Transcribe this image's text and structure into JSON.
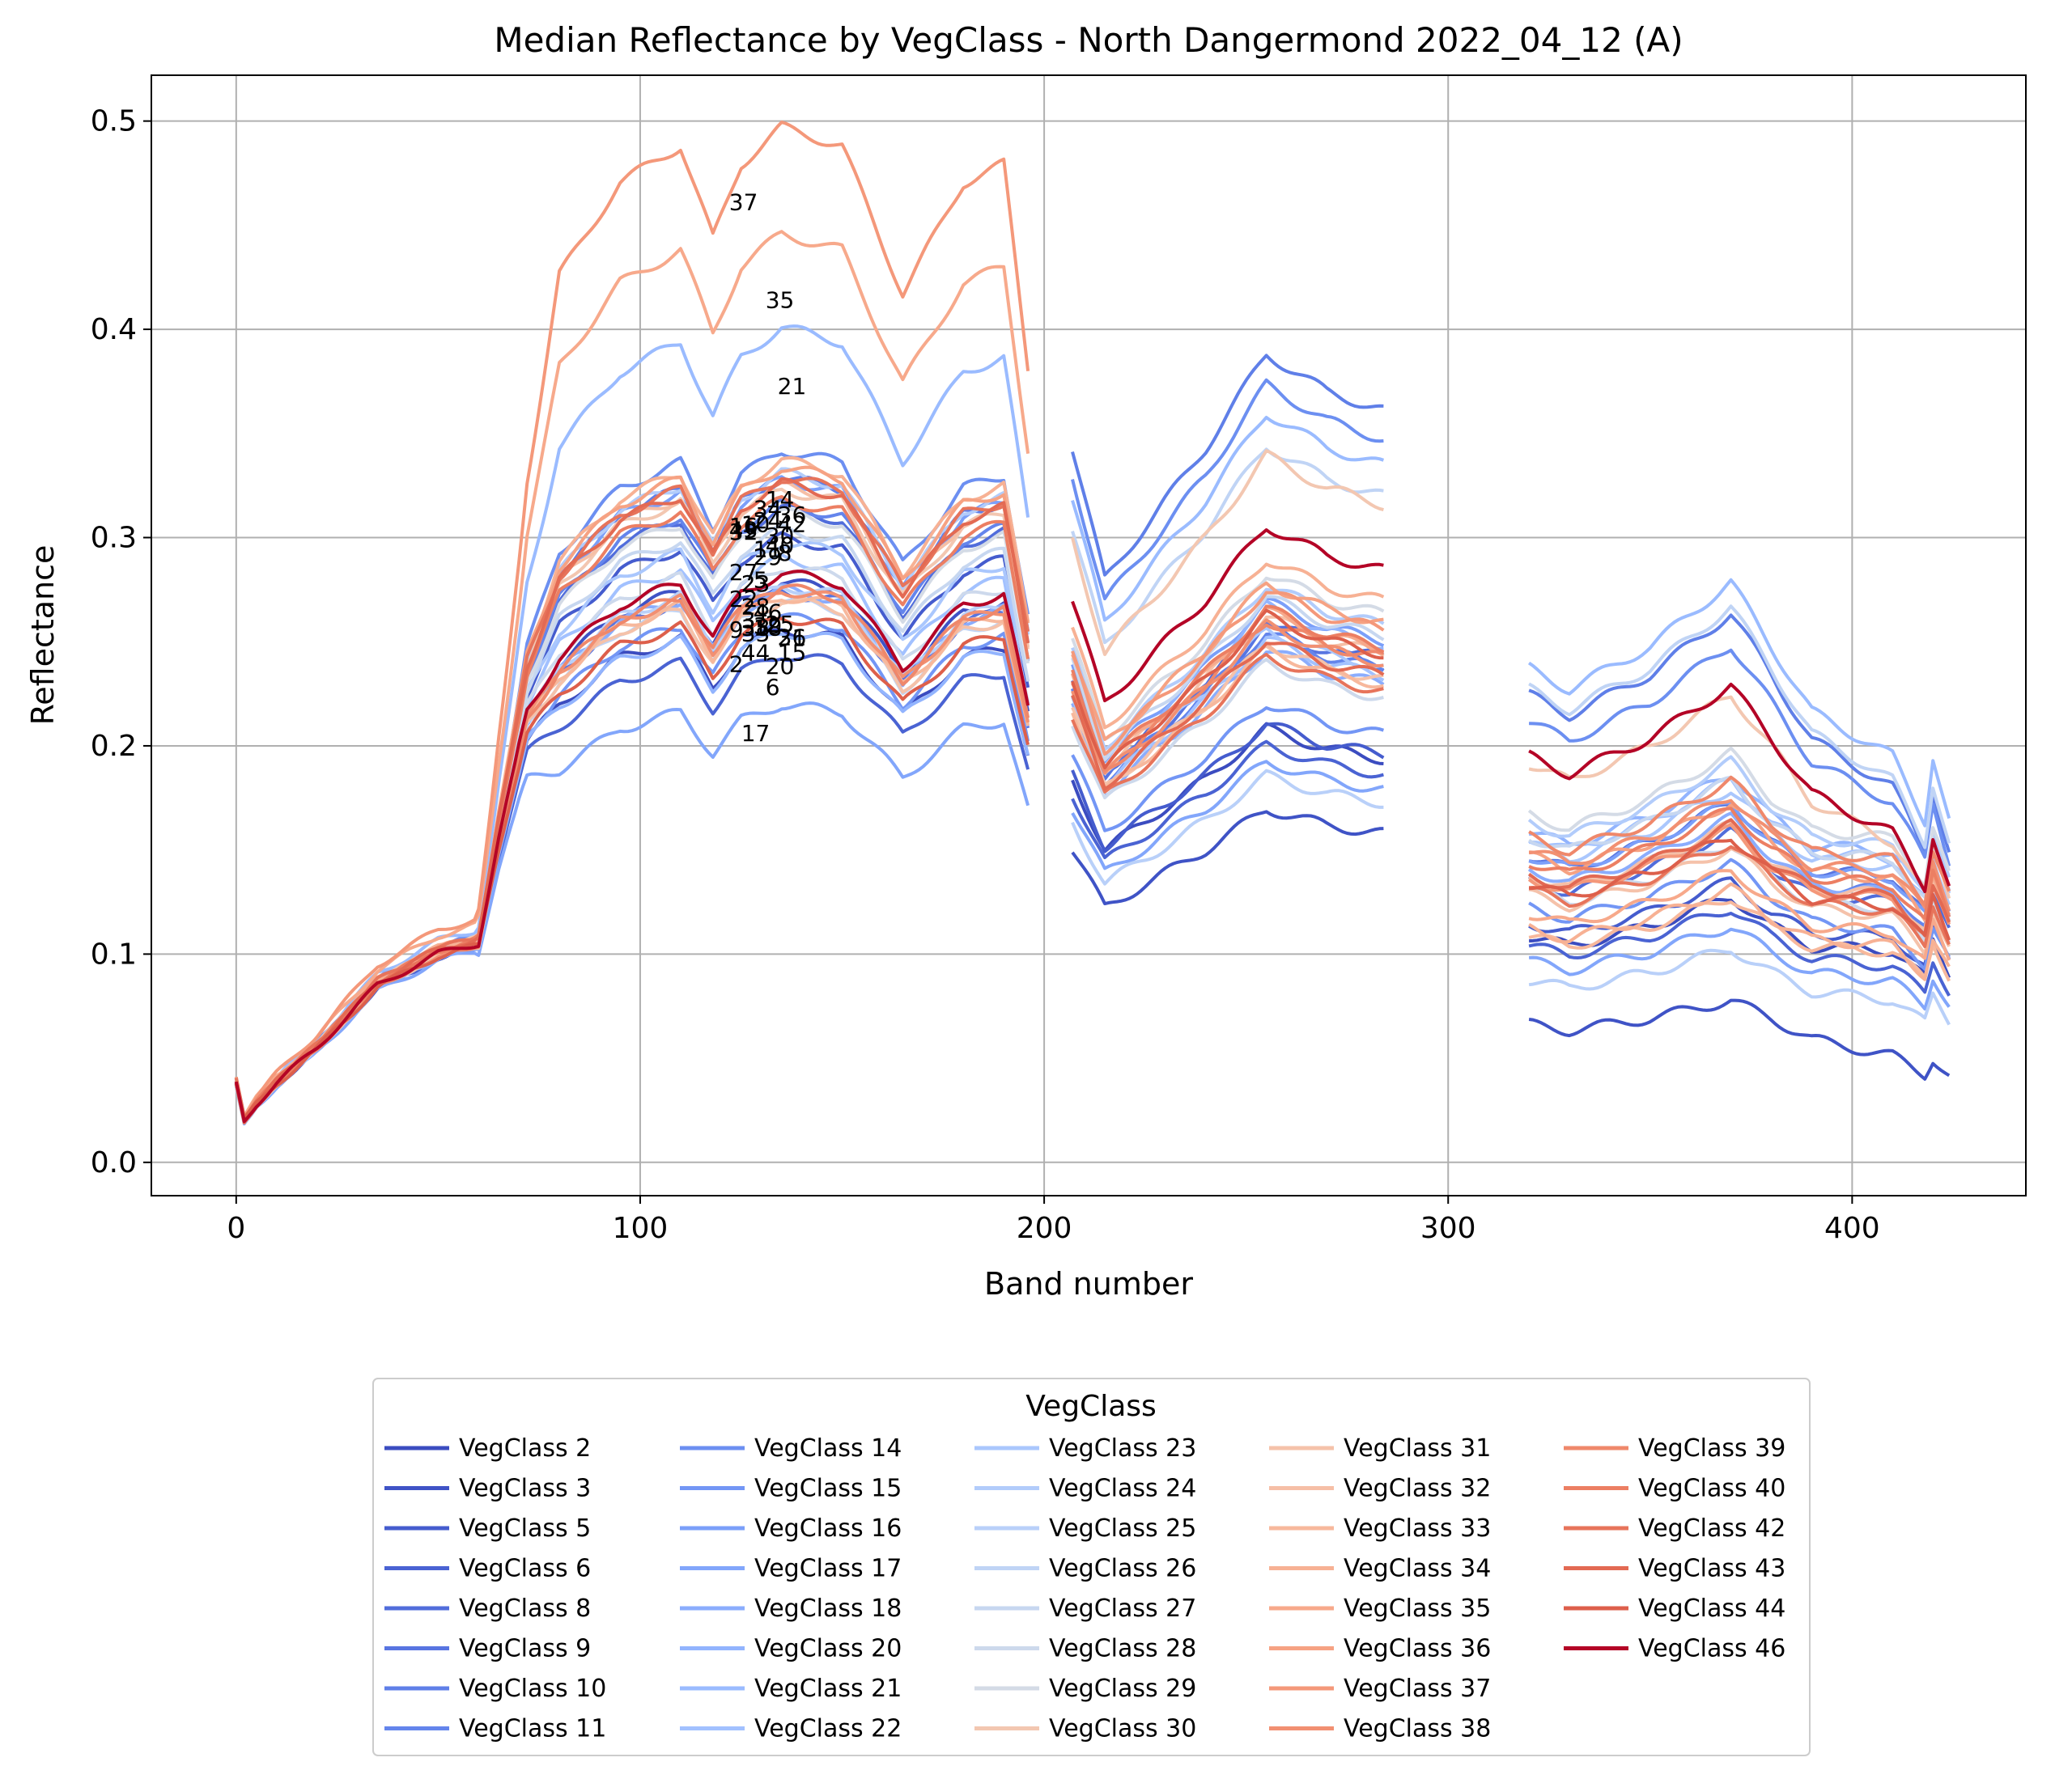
{
  "chart_data": {
    "type": "line",
    "title": "Median Reflectance by VegClass - North Dangermond 2022_04_12 (A)",
    "xlabel": "Band number",
    "ylabel": "Reflectance",
    "xlim": [
      -21,
      443
    ],
    "ylim": [
      -0.016,
      0.522
    ],
    "xticks": [
      0,
      100,
      200,
      300,
      400
    ],
    "xtick_labels": [
      "0",
      "100",
      "200",
      "300",
      "400"
    ],
    "yticks": [
      0.0,
      0.1,
      0.2,
      0.3,
      0.4,
      0.5
    ],
    "ytick_labels": [
      "0.0",
      "0.1",
      "0.2",
      "0.3",
      "0.4",
      "0.5"
    ],
    "grid": true,
    "legend_title": "VegClass",
    "legend_position": "below plot",
    "legend_columns": 5,
    "colormap": "coolwarm",
    "gap_bands": [
      [
        196,
        207
      ],
      [
        284,
        320
      ]
    ],
    "shape_x": [
      0,
      2,
      5,
      10,
      20,
      35,
      50,
      60,
      65,
      72,
      80,
      95,
      110,
      118,
      125,
      135,
      150,
      165,
      180,
      190,
      196,
      207,
      215,
      240,
      255,
      270,
      284,
      320,
      330,
      350,
      370,
      390,
      410,
      418,
      420,
      424
    ],
    "shape_y": [
      0.038,
      0.02,
      0.028,
      0.038,
      0.055,
      0.085,
      0.1,
      0.105,
      0.155,
      0.215,
      0.24,
      0.265,
      0.275,
      0.25,
      0.27,
      0.28,
      0.275,
      0.235,
      0.265,
      0.27,
      0.215,
      0.19,
      0.155,
      0.19,
      0.215,
      0.205,
      0.2,
      0.115,
      0.11,
      0.12,
      0.135,
      0.105,
      0.095,
      0.08,
      0.095,
      0.08
    ],
    "series": [
      {
        "name": "VegClass 2",
        "color": "#3b4cc0",
        "label": "2",
        "peak": 0.256,
        "swir1": 0.184,
        "swir2": 0.118,
        "late": 0.113
      },
      {
        "name": "VegClass 3",
        "color": "#3f53c6",
        "label": "3",
        "peak": 0.279,
        "swir1": 0.15,
        "swir2": 0.072,
        "late": 0.052
      },
      {
        "name": "VegClass 5",
        "color": "#455cce",
        "label": "5",
        "peak": 0.3,
        "swir1": 0.186,
        "swir2": 0.125,
        "late": 0.12
      },
      {
        "name": "VegClass 6",
        "color": "#4a63d3",
        "label": "6",
        "peak": 0.244,
        "swir1": 0.177,
        "swir2": 0.113,
        "late": 0.103
      },
      {
        "name": "VegClass 8",
        "color": "#516ddb",
        "label": "8",
        "peak": 0.314,
        "swir1": 0.23,
        "swir2": 0.147,
        "late": 0.138
      },
      {
        "name": "VegClass 9",
        "color": "#5875e1",
        "label": "9",
        "peak": 0.274,
        "swir1": 0.227,
        "swir2": 0.16,
        "late": 0.152
      },
      {
        "name": "VegClass 10",
        "color": "#5f7fe8",
        "label": "10",
        "peak": 0.329,
        "swir1": 0.343,
        "swir2": 0.244,
        "late": 0.187
      },
      {
        "name": "VegClass 11",
        "color": "#6485ec",
        "label": "11",
        "peak": 0.316,
        "swir1": 0.225,
        "swir2": 0.15,
        "late": 0.145
      },
      {
        "name": "VegClass 14",
        "color": "#6c8ff1",
        "label": "14",
        "peak": 0.342,
        "swir1": 0.33,
        "swir2": 0.23,
        "late": 0.181
      },
      {
        "name": "VegClass 15",
        "color": "#7396f5",
        "label": "15",
        "peak": 0.262,
        "swir1": 0.195,
        "swir2": 0.133,
        "late": 0.121
      },
      {
        "name": "VegClass 16",
        "color": "#7b9ff9",
        "label": "16",
        "peak": 0.328,
        "swir1": 0.238,
        "swir2": 0.16,
        "late": 0.151
      },
      {
        "name": "VegClass 17",
        "color": "#82a6fb",
        "label": "17",
        "peak": 0.22,
        "swir1": 0.17,
        "swir2": 0.105,
        "late": 0.095
      },
      {
        "name": "VegClass 18",
        "color": "#8badfd",
        "label": "18",
        "peak": 0.275,
        "swir1": 0.218,
        "swir2": 0.153,
        "late": 0.142
      },
      {
        "name": "VegClass 20",
        "color": "#92b4fe",
        "label": "20",
        "peak": 0.255,
        "swir1": 0.236,
        "swir2": 0.173,
        "late": 0.166
      },
      {
        "name": "VegClass 21",
        "color": "#9abbff",
        "label": "21",
        "peak": 0.401,
        "swir1": 0.318,
        "swir2": 0.258,
        "late": 0.205
      },
      {
        "name": "VegClass 22",
        "color": "#a2c1ff",
        "label": "22",
        "peak": 0.29,
        "swir1": 0.222,
        "swir2": 0.17,
        "late": 0.161
      },
      {
        "name": "VegClass 23",
        "color": "#aac7fd",
        "label": "23",
        "peak": 0.298,
        "swir1": 0.226,
        "swir2": 0.166,
        "late": 0.157
      },
      {
        "name": "VegClass 24",
        "color": "#b2ccfb",
        "label": "24",
        "peak": 0.331,
        "swir1": 0.245,
        "swir2": 0.178,
        "late": 0.168
      },
      {
        "name": "VegClass 25",
        "color": "#b9d0f9",
        "label": "25",
        "peak": 0.277,
        "swir1": 0.164,
        "swir2": 0.095,
        "late": 0.085
      },
      {
        "name": "VegClass 26",
        "color": "#c0d4f5",
        "label": "26",
        "peak": 0.27,
        "swir1": 0.304,
        "swir2": 0.247,
        "late": 0.191
      },
      {
        "name": "VegClass 27",
        "color": "#c7d7f0",
        "label": "27",
        "peak": 0.304,
        "swir1": 0.24,
        "swir2": 0.17,
        "late": 0.161
      },
      {
        "name": "VegClass 28",
        "color": "#cdd9ec",
        "label": "28",
        "peak": 0.286,
        "swir1": 0.212,
        "swir2": 0.142,
        "late": 0.135
      },
      {
        "name": "VegClass 29",
        "color": "#d4dbe6",
        "label": "29",
        "peak": 0.312,
        "swir1": 0.25,
        "swir2": 0.182,
        "late": 0.172
      },
      {
        "name": "VegClass 30",
        "color": "#f3c7b1",
        "label": "30",
        "peak": 0.323,
        "swir1": 0.3,
        "swir2": 0.208,
        "late": 0.16
      },
      {
        "name": "VegClass 31",
        "color": "#f5c2aa",
        "label": "31",
        "peak": 0.27,
        "swir1": 0.22,
        "swir2": 0.14,
        "late": 0.13
      },
      {
        "name": "VegClass 32",
        "color": "#f6bfa6",
        "label": "32",
        "peak": 0.325,
        "swir1": 0.232,
        "swir2": 0.15,
        "late": 0.142
      },
      {
        "name": "VegClass 33",
        "color": "#f7b89c",
        "label": "33",
        "peak": 0.272,
        "swir1": 0.218,
        "swir2": 0.118,
        "late": 0.112
      },
      {
        "name": "VegClass 34",
        "color": "#f7b194",
        "label": "34",
        "peak": 0.337,
        "swir1": 0.256,
        "swir2": 0.122,
        "late": 0.115
      },
      {
        "name": "VegClass 35",
        "color": "#f7a98b",
        "label": "35",
        "peak": 0.446,
        "swir1": 0.234,
        "swir2": 0.13,
        "late": 0.122
      },
      {
        "name": "VegClass 36",
        "color": "#f6a283",
        "label": "36",
        "peak": 0.334,
        "swir1": 0.246,
        "swir2": 0.16,
        "late": 0.15
      },
      {
        "name": "VegClass 37",
        "color": "#f4987a",
        "label": "37",
        "peak": 0.497,
        "swir1": 0.243,
        "swir2": 0.148,
        "late": 0.14
      },
      {
        "name": "VegClass 38",
        "color": "#f29072",
        "label": "38",
        "peak": 0.275,
        "swir1": 0.228,
        "swir2": 0.163,
        "late": 0.154
      },
      {
        "name": "VegClass 39",
        "color": "#ef886b",
        "label": "39",
        "peak": 0.276,
        "swir1": 0.23,
        "swir2": 0.17,
        "late": 0.161
      },
      {
        "name": "VegClass 40",
        "color": "#ec7f63",
        "label": "40",
        "peak": 0.318,
        "swir1": 0.235,
        "swir2": 0.157,
        "late": 0.147
      },
      {
        "name": "VegClass 42",
        "color": "#e7745b",
        "label": "42",
        "peak": 0.329,
        "swir1": 0.215,
        "swir2": 0.142,
        "late": 0.133
      },
      {
        "name": "VegClass 43",
        "color": "#e36a53",
        "label": "43",
        "peak": 0.326,
        "swir1": 0.222,
        "swir2": 0.15,
        "late": 0.141
      },
      {
        "name": "VegClass 44",
        "color": "#dd5f4b",
        "label": "44",
        "peak": 0.262,
        "swir1": 0.232,
        "swir2": 0.145,
        "late": 0.136
      },
      {
        "name": "VegClass 46",
        "color": "#b40426",
        "label": "46",
        "peak": 0.283,
        "swir1": 0.27,
        "swir2": 0.212,
        "late": 0.165
      }
    ]
  }
}
